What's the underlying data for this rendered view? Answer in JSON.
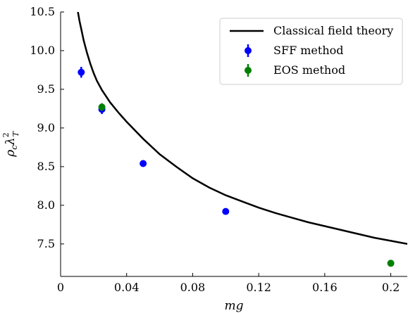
{
  "chart_data": {
    "type": "scatter",
    "xlabel": "mg",
    "ylabel": "ρcλT2",
    "ylabel_parts": {
      "base": "ρ",
      "sub1": "c",
      "mid": "λ",
      "sup": "2",
      "sub2": "T"
    },
    "xlim": [
      0,
      0.21
    ],
    "ylim": [
      7.08,
      10.5
    ],
    "x_ticks": [
      0,
      0.04,
      0.08,
      0.12,
      0.16,
      0.2
    ],
    "x_tick_labels": [
      "0",
      "0.04",
      "0.08",
      "0.12",
      "0.16",
      "0.2"
    ],
    "y_ticks": [
      7.5,
      8.0,
      8.5,
      9.0,
      9.5,
      10.0,
      10.5
    ],
    "y_tick_labels": [
      "7.5",
      "8.0",
      "8.5",
      "9.0",
      "9.5",
      "10.0",
      "10.5"
    ],
    "grid": false,
    "legend_position": "top-right",
    "series": [
      {
        "name": "Classical field theory",
        "kind": "line",
        "color": "#000000",
        "x": [
          0.0105,
          0.0115,
          0.0125,
          0.014,
          0.016,
          0.018,
          0.02,
          0.022,
          0.025,
          0.03,
          0.035,
          0.04,
          0.05,
          0.06,
          0.07,
          0.08,
          0.09,
          0.1,
          0.11,
          0.12,
          0.13,
          0.14,
          0.15,
          0.16,
          0.17,
          0.18,
          0.19,
          0.2,
          0.21
        ],
        "y": [
          10.5,
          10.38,
          10.28,
          10.13,
          9.97,
          9.83,
          9.71,
          9.61,
          9.49,
          9.33,
          9.2,
          9.08,
          8.86,
          8.66,
          8.5,
          8.35,
          8.23,
          8.13,
          8.05,
          7.97,
          7.9,
          7.84,
          7.78,
          7.73,
          7.68,
          7.63,
          7.58,
          7.54,
          7.5
        ]
      },
      {
        "name": "SFF method",
        "kind": "points",
        "color": "#0000ff",
        "x": [
          0.0125,
          0.025,
          0.05,
          0.1
        ],
        "y": [
          9.72,
          9.24,
          8.54,
          7.92
        ],
        "err": [
          0.07,
          0.06,
          0.04,
          0.03
        ]
      },
      {
        "name": "EOS method",
        "kind": "points",
        "color": "#008000",
        "x": [
          0.025,
          0.2
        ],
        "y": [
          9.27,
          7.25
        ],
        "err": [
          0.05,
          0.03
        ]
      }
    ]
  }
}
